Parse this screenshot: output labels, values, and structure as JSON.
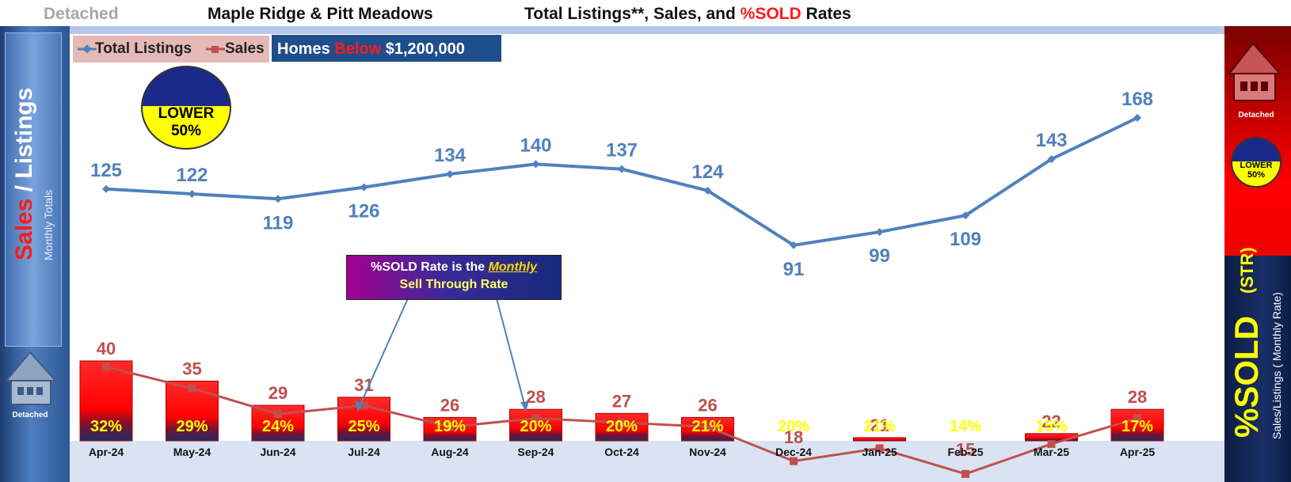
{
  "header": {
    "type": "Detached",
    "area": "Maple Ridge & Pitt Meadows",
    "title_part1": "Total Listings**, Sales, and ",
    "title_highlight": "%SOLD",
    "title_part2": " Rates"
  },
  "legend": {
    "total_listings": "Total Listings",
    "sales": "Sales"
  },
  "price_band": {
    "prefix": "Homes ",
    "word": "Below",
    "price": " $1,200,000"
  },
  "badge": {
    "line1": "LOWER",
    "line2": "50%"
  },
  "left_panel": {
    "sales": "Sales",
    "slash_listings": " / Listings",
    "sub": "Monthly Totals",
    "house_label": "Detached"
  },
  "right_panel": {
    "house_label": "Detached",
    "sold": "%SOLD",
    "str": "(STR)",
    "sub": "Sales/Listings ( Monthly Rate)"
  },
  "callout": {
    "part1": "%SOLD Rate is the ",
    "part2": "Monthly",
    "line2": "Sell Through Rate"
  },
  "colors": {
    "listings": "#4f81bd",
    "sales_line": "#c0504d",
    "bar": "#ff0000",
    "pct_text": "#ffff00"
  },
  "chart_data": {
    "type": "bar",
    "categories": [
      "Apr-24",
      "May-24",
      "Jun-24",
      "Jul-24",
      "Aug-24",
      "Sep-24",
      "Oct-24",
      "Nov-24",
      "Dec-24",
      "Jan-25",
      "Feb-25",
      "Mar-25",
      "Apr-25"
    ],
    "series": [
      {
        "name": "Total Listings",
        "type": "line",
        "values": [
          125,
          122,
          119,
          126,
          134,
          140,
          137,
          124,
          91,
          99,
          109,
          143,
          168
        ]
      },
      {
        "name": "Sales",
        "type": "bar+line",
        "values": [
          40,
          35,
          29,
          31,
          26,
          28,
          27,
          26,
          18,
          21,
          15,
          22,
          28
        ]
      }
    ],
    "sold_rate_labels": [
      "32%",
      "29%",
      "24%",
      "25%",
      "19%",
      "20%",
      "20%",
      "21%",
      "20%",
      "21%",
      "14%",
      "15%",
      "17%"
    ],
    "legend_position": "top-left",
    "grid": false
  }
}
